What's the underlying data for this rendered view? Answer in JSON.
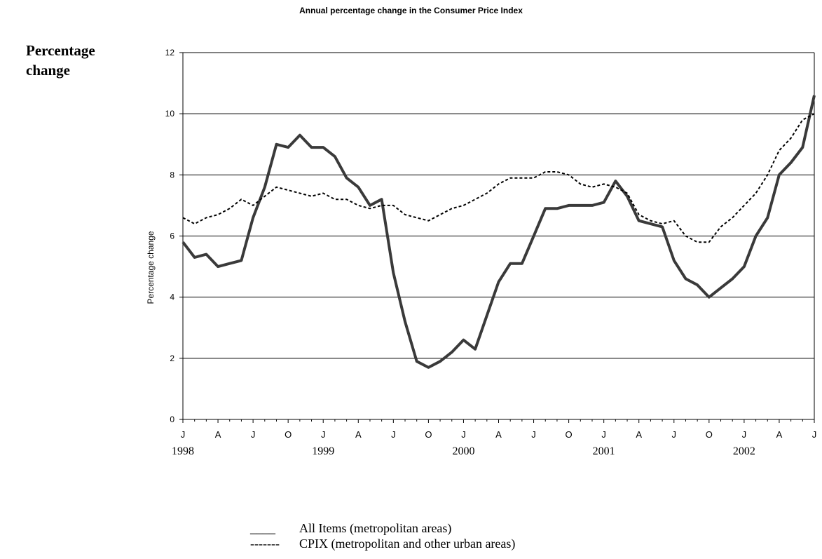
{
  "chart_data": {
    "type": "line",
    "title": "Annual percentage change in the Consumer Price Index",
    "side_label_line1": "Percentage",
    "side_label_line2": "change",
    "ylabel": "Percentage change",
    "xlabel": "",
    "ylim": [
      0,
      12
    ],
    "yticks": [
      0,
      2,
      4,
      6,
      8,
      10,
      12
    ],
    "grid": true,
    "month_tick_labels": [
      "J",
      "A",
      "J",
      "O",
      "J",
      "A",
      "J",
      "O",
      "J",
      "A",
      "J",
      "O",
      "J",
      "A",
      "J",
      "O",
      "J",
      "A",
      "J"
    ],
    "year_labels": [
      "1998",
      "1999",
      "2000",
      "2001",
      "2002"
    ],
    "x_range": [
      0,
      54
    ],
    "series": [
      {
        "name": "All Items (metropolitan areas)",
        "style": "solid",
        "color": "#3a3a3a",
        "values": [
          5.8,
          5.3,
          5.4,
          5.0,
          5.1,
          5.2,
          6.6,
          7.6,
          9.0,
          8.9,
          9.3,
          8.9,
          8.9,
          8.6,
          7.9,
          7.6,
          7.0,
          7.2,
          4.8,
          3.2,
          1.9,
          1.7,
          1.9,
          2.2,
          2.6,
          2.3,
          3.4,
          4.5,
          5.1,
          5.1,
          6.0,
          6.9,
          6.9,
          7.0,
          7.0,
          7.0,
          7.1,
          7.8,
          7.3,
          6.5,
          6.4,
          6.3,
          5.2,
          4.6,
          4.4,
          4.0,
          4.3,
          4.6,
          5.0,
          6.0,
          6.6,
          8.0,
          8.4,
          8.9,
          10.6
        ]
      },
      {
        "name": "CPIX (metropolitan and other urban areas)",
        "style": "dashed",
        "color": "#000000",
        "values": [
          6.6,
          6.4,
          6.6,
          6.7,
          6.9,
          7.2,
          7.0,
          7.3,
          7.6,
          7.5,
          7.4,
          7.3,
          7.4,
          7.2,
          7.2,
          7.0,
          6.9,
          7.0,
          7.0,
          6.7,
          6.6,
          6.5,
          6.7,
          6.9,
          7.0,
          7.2,
          7.4,
          7.7,
          7.9,
          7.9,
          7.9,
          8.1,
          8.1,
          8.0,
          7.7,
          7.6,
          7.7,
          7.6,
          7.4,
          6.7,
          6.5,
          6.4,
          6.5,
          6.0,
          5.8,
          5.8,
          6.3,
          6.6,
          7.0,
          7.4,
          8.0,
          8.8,
          9.2,
          9.8,
          10.0
        ]
      }
    ]
  },
  "legend": {
    "solid_key": "____",
    "solid_label": "All Items (metropolitan areas)",
    "dashed_key": "-------",
    "dashed_label": "CPIX (metropolitan and other urban areas)"
  }
}
